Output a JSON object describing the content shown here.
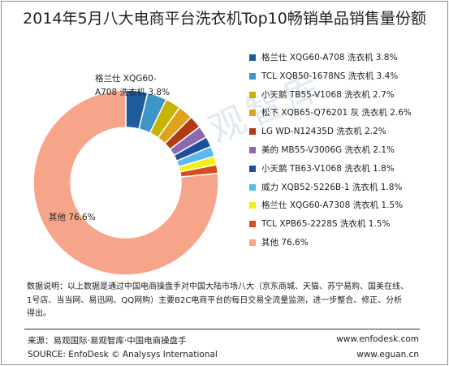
{
  "chart_data": {
    "type": "pie",
    "title": "2014年5月八大电商平台洗衣机Top10畅销单品销售量份额",
    "donut": true,
    "legend_position": "right",
    "slices": [
      {
        "label": "格兰仕 XQG60-A708 洗衣机",
        "value": 3.8,
        "color": "#1f5c9c"
      },
      {
        "label": "TCL XQB50-1678NS 洗衣机",
        "value": 3.4,
        "color": "#3f95c8"
      },
      {
        "label": "小天鹅 TB55-V1068 洗衣机",
        "value": 2.7,
        "color": "#c8b400"
      },
      {
        "label": "松下 XQB65-Q76201 灰 洗衣机",
        "value": 2.6,
        "color": "#e0a21c"
      },
      {
        "label": "LG WD-N12435D 洗衣机",
        "value": 2.2,
        "color": "#b13b12"
      },
      {
        "label": "美的 MB55-V3006G 洗衣机",
        "value": 2.1,
        "color": "#8a69b0"
      },
      {
        "label": "小天鹅 TB63-V1068 洗衣机",
        "value": 1.8,
        "color": "#1e4f9a"
      },
      {
        "label": "威力 XQB52-5226B-1 洗衣机",
        "value": 1.8,
        "color": "#5bbbe8"
      },
      {
        "label": "格兰仕 XQG60-A7308 洗衣机",
        "value": 1.5,
        "color": "#f2ef14"
      },
      {
        "label": "TCL XPB65-2228S 洗衣机",
        "value": 1.5,
        "color": "#d84e1a"
      },
      {
        "label": "其他",
        "value": 76.6,
        "color": "#f7a58a"
      }
    ],
    "data_labels": [
      {
        "slice": 0,
        "lines": [
          "格兰仕 XQG60-",
          "A708 洗衣机 3.8%"
        ]
      },
      {
        "slice": 10,
        "lines": [
          "其他 76.6%"
        ]
      }
    ]
  },
  "legend_text_suffix": "%",
  "watermark": "易观智库",
  "note": "数据说明：以上数据是通过中国电商操盘手对中国大陆市场八大（京东商城、天猫、苏宁易购、国美在线、1号店、当当网、易迅网、QQ网购）主要B2C电商平台的每日交易全流量监测，进一步整合、修正、分析得出。",
  "footer": {
    "source_cn": "来源：易观国际·易观智库·中国电商操盘手",
    "source_en": "SOURCE: EnfoDesk © Analysys International",
    "url1": "www.enfodesk.com",
    "url2": "www.eguan.cn"
  }
}
